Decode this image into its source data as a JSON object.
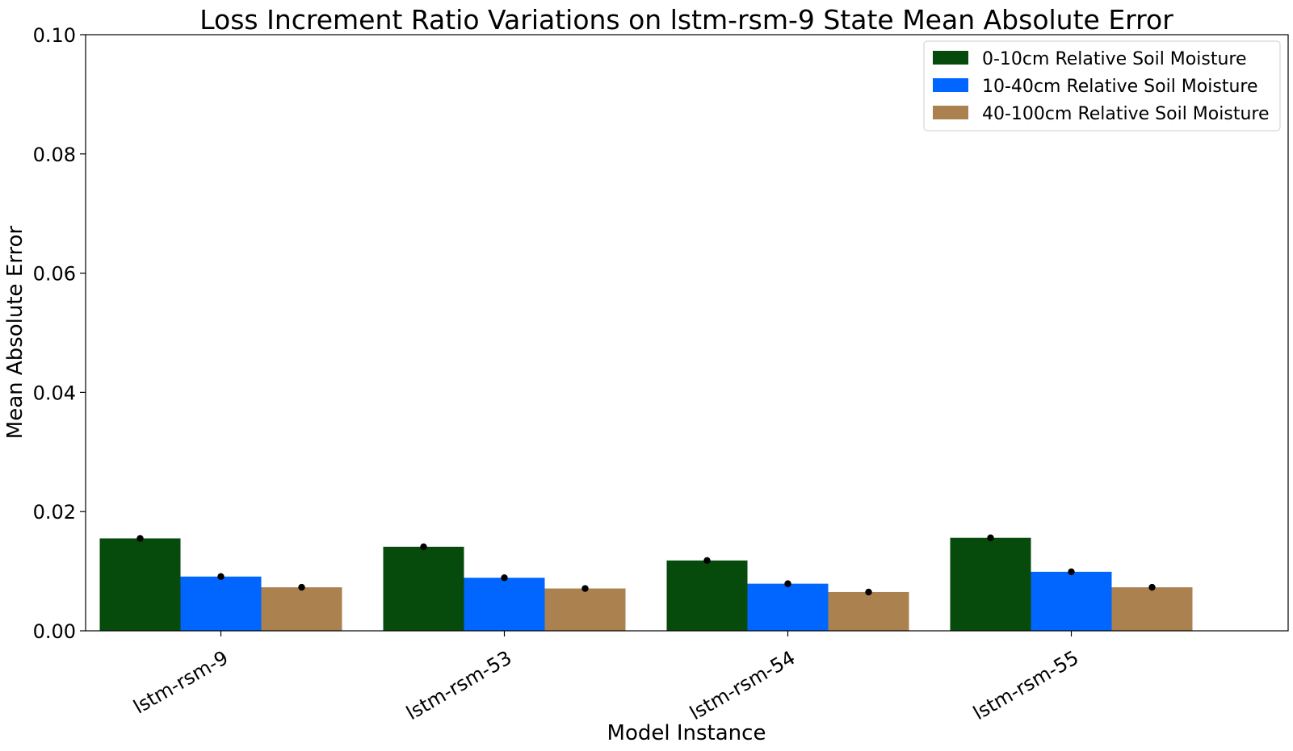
{
  "chart_data": {
    "type": "bar",
    "title": "Loss Increment Ratio Variations on lstm-rsm-9 State Mean Absolute Error",
    "xlabel": "Model Instance",
    "ylabel": "Mean Absolute Error",
    "ylim": [
      0,
      0.1
    ],
    "yticks": [
      "0.00",
      "0.02",
      "0.04",
      "0.06",
      "0.08",
      "0.10"
    ],
    "categories": [
      "lstm-rsm-9",
      "lstm-rsm-53",
      "lstm-rsm-54",
      "lstm-rsm-55"
    ],
    "series": [
      {
        "name": "0-10cm Relative Soil Moisture",
        "color": "#064a0c",
        "values": [
          0.0155,
          0.0141,
          0.0118,
          0.0156
        ]
      },
      {
        "name": "10-40cm Relative Soil Moisture",
        "color": "#0066ff",
        "values": [
          0.0091,
          0.0089,
          0.0079,
          0.0099
        ]
      },
      {
        "name": "40-100cm Relative Soil Moisture",
        "color": "#ab8150",
        "values": [
          0.0073,
          0.0071,
          0.0065,
          0.0073
        ]
      }
    ],
    "error_marker_color": "#000000",
    "grid": false,
    "legend_position": "top-right"
  }
}
